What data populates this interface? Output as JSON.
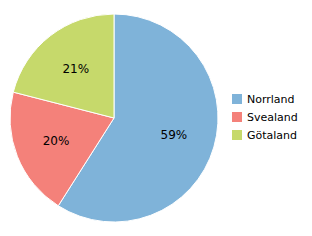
{
  "chart_data": {
    "type": "pie",
    "categories": [
      "Norrland",
      "Svealand",
      "Götaland"
    ],
    "values": [
      59,
      20,
      21
    ],
    "value_labels": [
      "59%",
      "20%",
      "21%"
    ],
    "colors": [
      "#7fb3d9",
      "#f4817a",
      "#c6d96b"
    ],
    "data_labels": true,
    "legend": "right"
  }
}
